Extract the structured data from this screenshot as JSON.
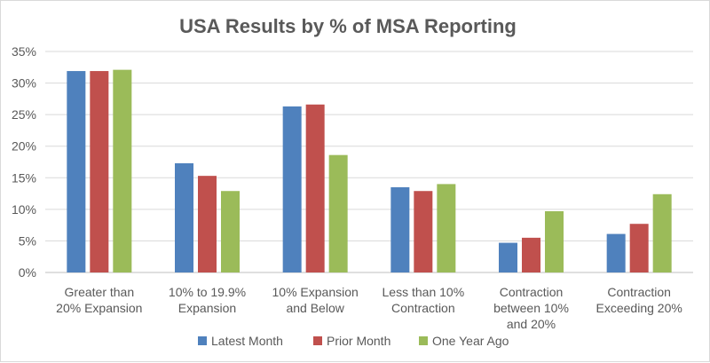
{
  "chart_data": {
    "type": "bar",
    "title": "USA Results by % of MSA Reporting",
    "xlabel": "",
    "ylabel": "",
    "ylim": [
      0,
      35
    ],
    "yticks": [
      "0%",
      "5%",
      "10%",
      "15%",
      "20%",
      "25%",
      "30%",
      "35%"
    ],
    "ytick_values": [
      0,
      5,
      10,
      15,
      20,
      25,
      30,
      35
    ],
    "grid": true,
    "legend_position": "bottom",
    "categories": [
      [
        "Greater than",
        "20% Expansion"
      ],
      [
        "10% to 19.9%",
        "Expansion"
      ],
      [
        "10% Expansion",
        "and Below"
      ],
      [
        "Less than 10%",
        "Contraction"
      ],
      [
        "Contraction",
        "between 10%",
        "and 20%"
      ],
      [
        "Contraction",
        "Exceeding 20%"
      ]
    ],
    "series": [
      {
        "name": "Latest Month",
        "color": "#4f81bd",
        "values": [
          31.9,
          17.3,
          26.3,
          13.5,
          4.7,
          6.1
        ]
      },
      {
        "name": "Prior Month",
        "color": "#c0504d",
        "values": [
          31.9,
          15.3,
          26.6,
          12.9,
          5.5,
          7.7
        ]
      },
      {
        "name": "One Year Ago",
        "color": "#9bbb59",
        "values": [
          32.1,
          12.9,
          18.6,
          14.0,
          9.7,
          12.4
        ]
      }
    ]
  }
}
